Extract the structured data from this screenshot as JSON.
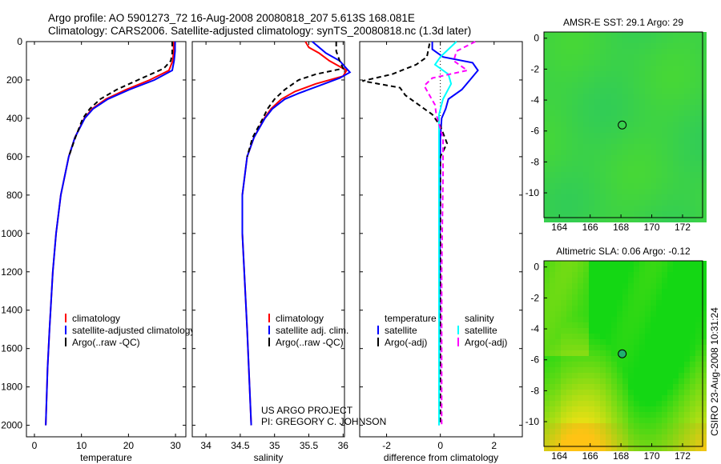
{
  "title": {
    "line1": "Argo profile: AO 5901273_72 16-Aug-2008 20080818_207 5.613S 168.081E",
    "line2": "Climatology: CARS2006. Satellite-adjusted climatology: synTS_20080818.nc (1.3d later)"
  },
  "credit": {
    "line1": "US ARGO PROJECT",
    "line2": "PI: GREGORY C. JOHNSON"
  },
  "stamp": "CSIRO 23-Aug-2008 10:31:24",
  "colors": {
    "red": "#ff0000",
    "blue": "#0000ff",
    "black": "#000000",
    "cyan": "#00ffff",
    "magenta": "#ff00ff"
  },
  "chart_data": [
    {
      "type": "line",
      "xlabel": "temperature",
      "xlim": [
        -1.7,
        32.2
      ],
      "ylim": [
        0,
        2060
      ],
      "xticks": [
        "0",
        "10",
        "20",
        "30"
      ],
      "xtick_values": [
        0,
        10,
        20,
        30
      ],
      "yticks": [
        "0",
        "200",
        "400",
        "600",
        "800",
        "1000",
        "1200",
        "1400",
        "1600",
        "1800",
        "2000"
      ],
      "ytick_values": [
        0,
        200,
        400,
        600,
        800,
        1000,
        1200,
        1400,
        1600,
        1800,
        2000
      ],
      "legend": [
        "climatology",
        "satellite-adjusted climatology",
        "Argo(..raw -QC)"
      ],
      "series": [
        {
          "name": "climatology",
          "color": "red",
          "dash": false,
          "points": [
            [
              0,
              29.6
            ],
            [
              50,
              29.6
            ],
            [
              100,
              29.4
            ],
            [
              150,
              28.6
            ],
            [
              200,
              24.5
            ],
            [
              250,
              19.5
            ],
            [
              300,
              15.2
            ],
            [
              350,
              12.3
            ],
            [
              400,
              10.6
            ],
            [
              500,
              8.6
            ],
            [
              600,
              7.3
            ],
            [
              800,
              5.6
            ],
            [
              1000,
              4.6
            ],
            [
              1200,
              3.9
            ],
            [
              1500,
              3.2
            ],
            [
              1700,
              2.8
            ],
            [
              2000,
              2.4
            ]
          ]
        },
        {
          "name": "satellite-adjusted climatology",
          "color": "blue",
          "dash": false,
          "points": [
            [
              0,
              29.9
            ],
            [
              50,
              29.9
            ],
            [
              100,
              29.7
            ],
            [
              150,
              29.3
            ],
            [
              200,
              25.5
            ],
            [
              250,
              20.2
            ],
            [
              300,
              15.6
            ],
            [
              350,
              12.5
            ],
            [
              400,
              10.7
            ],
            [
              500,
              8.6
            ],
            [
              600,
              7.3
            ],
            [
              800,
              5.6
            ],
            [
              1000,
              4.6
            ],
            [
              1200,
              3.9
            ],
            [
              1500,
              3.2
            ],
            [
              1700,
              2.8
            ],
            [
              2000,
              2.4
            ]
          ]
        },
        {
          "name": "Argo(..raw -QC)",
          "color": "black",
          "dash": true,
          "points": [
            [
              0,
              29.3
            ],
            [
              60,
              29.3
            ],
            [
              100,
              29.0
            ],
            [
              140,
              27.5
            ],
            [
              200,
              22
            ],
            [
              250,
              17.5
            ],
            [
              300,
              14
            ],
            [
              350,
              11.8
            ],
            [
              400,
              10.3
            ],
            [
              500,
              8.7
            ],
            [
              600,
              7.3
            ]
          ]
        }
      ]
    },
    {
      "type": "line",
      "xlabel": "salinity",
      "xlim": [
        33.8,
        36.02
      ],
      "ylim": [
        0,
        2060
      ],
      "xticks": [
        "34",
        "34.5",
        "35",
        "35.5",
        "36"
      ],
      "xtick_values": [
        34,
        34.5,
        35,
        35.5,
        36
      ],
      "legend": [
        "climatology",
        "satellite adj. clim.",
        "Argo(..raw -QC)"
      ],
      "series": [
        {
          "name": "climatology",
          "color": "red",
          "dash": false,
          "points": [
            [
              0,
              35.45
            ],
            [
              30,
              35.5
            ],
            [
              60,
              35.65
            ],
            [
              100,
              35.8
            ],
            [
              150,
              36.05
            ],
            [
              180,
              36.0
            ],
            [
              220,
              35.6
            ],
            [
              260,
              35.3
            ],
            [
              300,
              35.1
            ],
            [
              350,
              34.95
            ],
            [
              400,
              34.85
            ],
            [
              500,
              34.7
            ],
            [
              600,
              34.6
            ],
            [
              800,
              34.53
            ],
            [
              1000,
              34.53
            ],
            [
              1500,
              34.6
            ],
            [
              2000,
              34.66
            ]
          ]
        },
        {
          "name": "satellite adj. clim.",
          "color": "blue",
          "dash": false,
          "points": [
            [
              0,
              35.55
            ],
            [
              30,
              35.65
            ],
            [
              60,
              35.75
            ],
            [
              100,
              35.95
            ],
            [
              160,
              36.1
            ],
            [
              190,
              35.95
            ],
            [
              230,
              35.65
            ],
            [
              270,
              35.35
            ],
            [
              300,
              35.15
            ],
            [
              350,
              34.97
            ],
            [
              400,
              34.86
            ],
            [
              500,
              34.7
            ],
            [
              600,
              34.6
            ],
            [
              800,
              34.53
            ],
            [
              1000,
              34.53
            ],
            [
              1500,
              34.6
            ],
            [
              2000,
              34.66
            ]
          ]
        },
        {
          "name": "Argo(..raw -QC)",
          "color": "black",
          "dash": true,
          "points": [
            [
              0,
              35.9
            ],
            [
              50,
              35.9
            ],
            [
              100,
              35.95
            ],
            [
              140,
              36.0
            ],
            [
              170,
              35.6
            ],
            [
              200,
              35.35
            ],
            [
              250,
              35.15
            ],
            [
              300,
              35.0
            ],
            [
              350,
              34.9
            ],
            [
              400,
              34.83
            ],
            [
              500,
              34.68
            ],
            [
              600,
              34.6
            ]
          ]
        }
      ]
    },
    {
      "type": "line",
      "xlabel": "difference from climatology",
      "xlim": [
        -3.0,
        3.05
      ],
      "ylim": [
        0,
        2060
      ],
      "xticks": [
        "-2",
        "0",
        "2"
      ],
      "xtick_values": [
        -2,
        0,
        2
      ],
      "legend_headers": [
        "temperature",
        "salinity"
      ],
      "legend": [
        "satellite",
        "Argo(-adj)",
        "satellite",
        "Argo(-adj)"
      ],
      "series": [
        {
          "name": "temperature satellite",
          "color": "blue",
          "dash": false,
          "points": [
            [
              0,
              -0.3
            ],
            [
              40,
              -0.3
            ],
            [
              80,
              0.1
            ],
            [
              110,
              1.2
            ],
            [
              150,
              1.4
            ],
            [
              200,
              1.1
            ],
            [
              250,
              0.8
            ],
            [
              300,
              0.3
            ],
            [
              350,
              0.2
            ],
            [
              400,
              0.05
            ],
            [
              500,
              0
            ],
            [
              2000,
              -0.05
            ]
          ]
        },
        {
          "name": "temperature Argo(-adj)",
          "color": "black",
          "dash": true,
          "points": [
            [
              10,
              -0.4
            ],
            [
              80,
              -0.5
            ],
            [
              120,
              -0.9
            ],
            [
              170,
              -1.8
            ],
            [
              205,
              -2.9
            ],
            [
              240,
              -1.5
            ],
            [
              280,
              -1.3
            ],
            [
              330,
              -0.8
            ],
            [
              380,
              -0.3
            ],
            [
              440,
              0
            ],
            [
              530,
              0.25
            ],
            [
              600,
              0.0
            ],
            [
              900,
              0.0
            ],
            [
              2000,
              0.0
            ]
          ]
        },
        {
          "name": "salinity satellite",
          "color": "cyan",
          "dash": false,
          "points": [
            [
              0,
              0.6
            ],
            [
              40,
              0.3
            ],
            [
              80,
              0.0
            ],
            [
              120,
              -0.2
            ],
            [
              170,
              0.3
            ],
            [
              220,
              0.4
            ],
            [
              300,
              0.1
            ],
            [
              380,
              -0.05
            ],
            [
              500,
              -0.05
            ],
            [
              2000,
              -0.05
            ]
          ]
        },
        {
          "name": "salinity Argo(-adj)",
          "color": "magenta",
          "dash": true,
          "points": [
            [
              0,
              1.3
            ],
            [
              50,
              0.6
            ],
            [
              100,
              0.5
            ],
            [
              150,
              1.0
            ],
            [
              190,
              -0.3
            ],
            [
              230,
              -0.6
            ],
            [
              280,
              -0.4
            ],
            [
              330,
              -0.2
            ],
            [
              380,
              -0.15
            ],
            [
              500,
              0.1
            ],
            [
              700,
              0.1
            ],
            [
              1200,
              0.05
            ],
            [
              2000,
              0.05
            ]
          ]
        }
      ]
    },
    {
      "type": "heatmap",
      "title": "AMSR-E SST: 29.1 Argo: 29",
      "xlim": [
        163,
        173.3
      ],
      "ylim": [
        -11.6,
        0.4
      ],
      "xticks": [
        "164",
        "166",
        "168",
        "170",
        "172"
      ],
      "xtick_values": [
        164,
        166,
        168,
        170,
        172
      ],
      "yticks": [
        "0",
        "-2",
        "-4",
        "-6",
        "-8",
        "-10"
      ],
      "ytick_values": [
        0,
        -2,
        -4,
        -6,
        -8,
        -10
      ],
      "marker": {
        "lon": 168.081,
        "lat": -5.613
      }
    },
    {
      "type": "heatmap",
      "title": "Altimetric SLA: 0.06 Argo: -0.12",
      "xlim": [
        163,
        173.3
      ],
      "ylim": [
        -11.6,
        0.4
      ],
      "xticks": [
        "164",
        "166",
        "168",
        "170",
        "172"
      ],
      "xtick_values": [
        164,
        166,
        168,
        170,
        172
      ],
      "yticks": [
        "0",
        "-2",
        "-4",
        "-6",
        "-8",
        "-10"
      ],
      "ytick_values": [
        0,
        -2,
        -4,
        -6,
        -8,
        -10
      ],
      "marker": {
        "lon": 168.081,
        "lat": -5.613
      }
    }
  ]
}
